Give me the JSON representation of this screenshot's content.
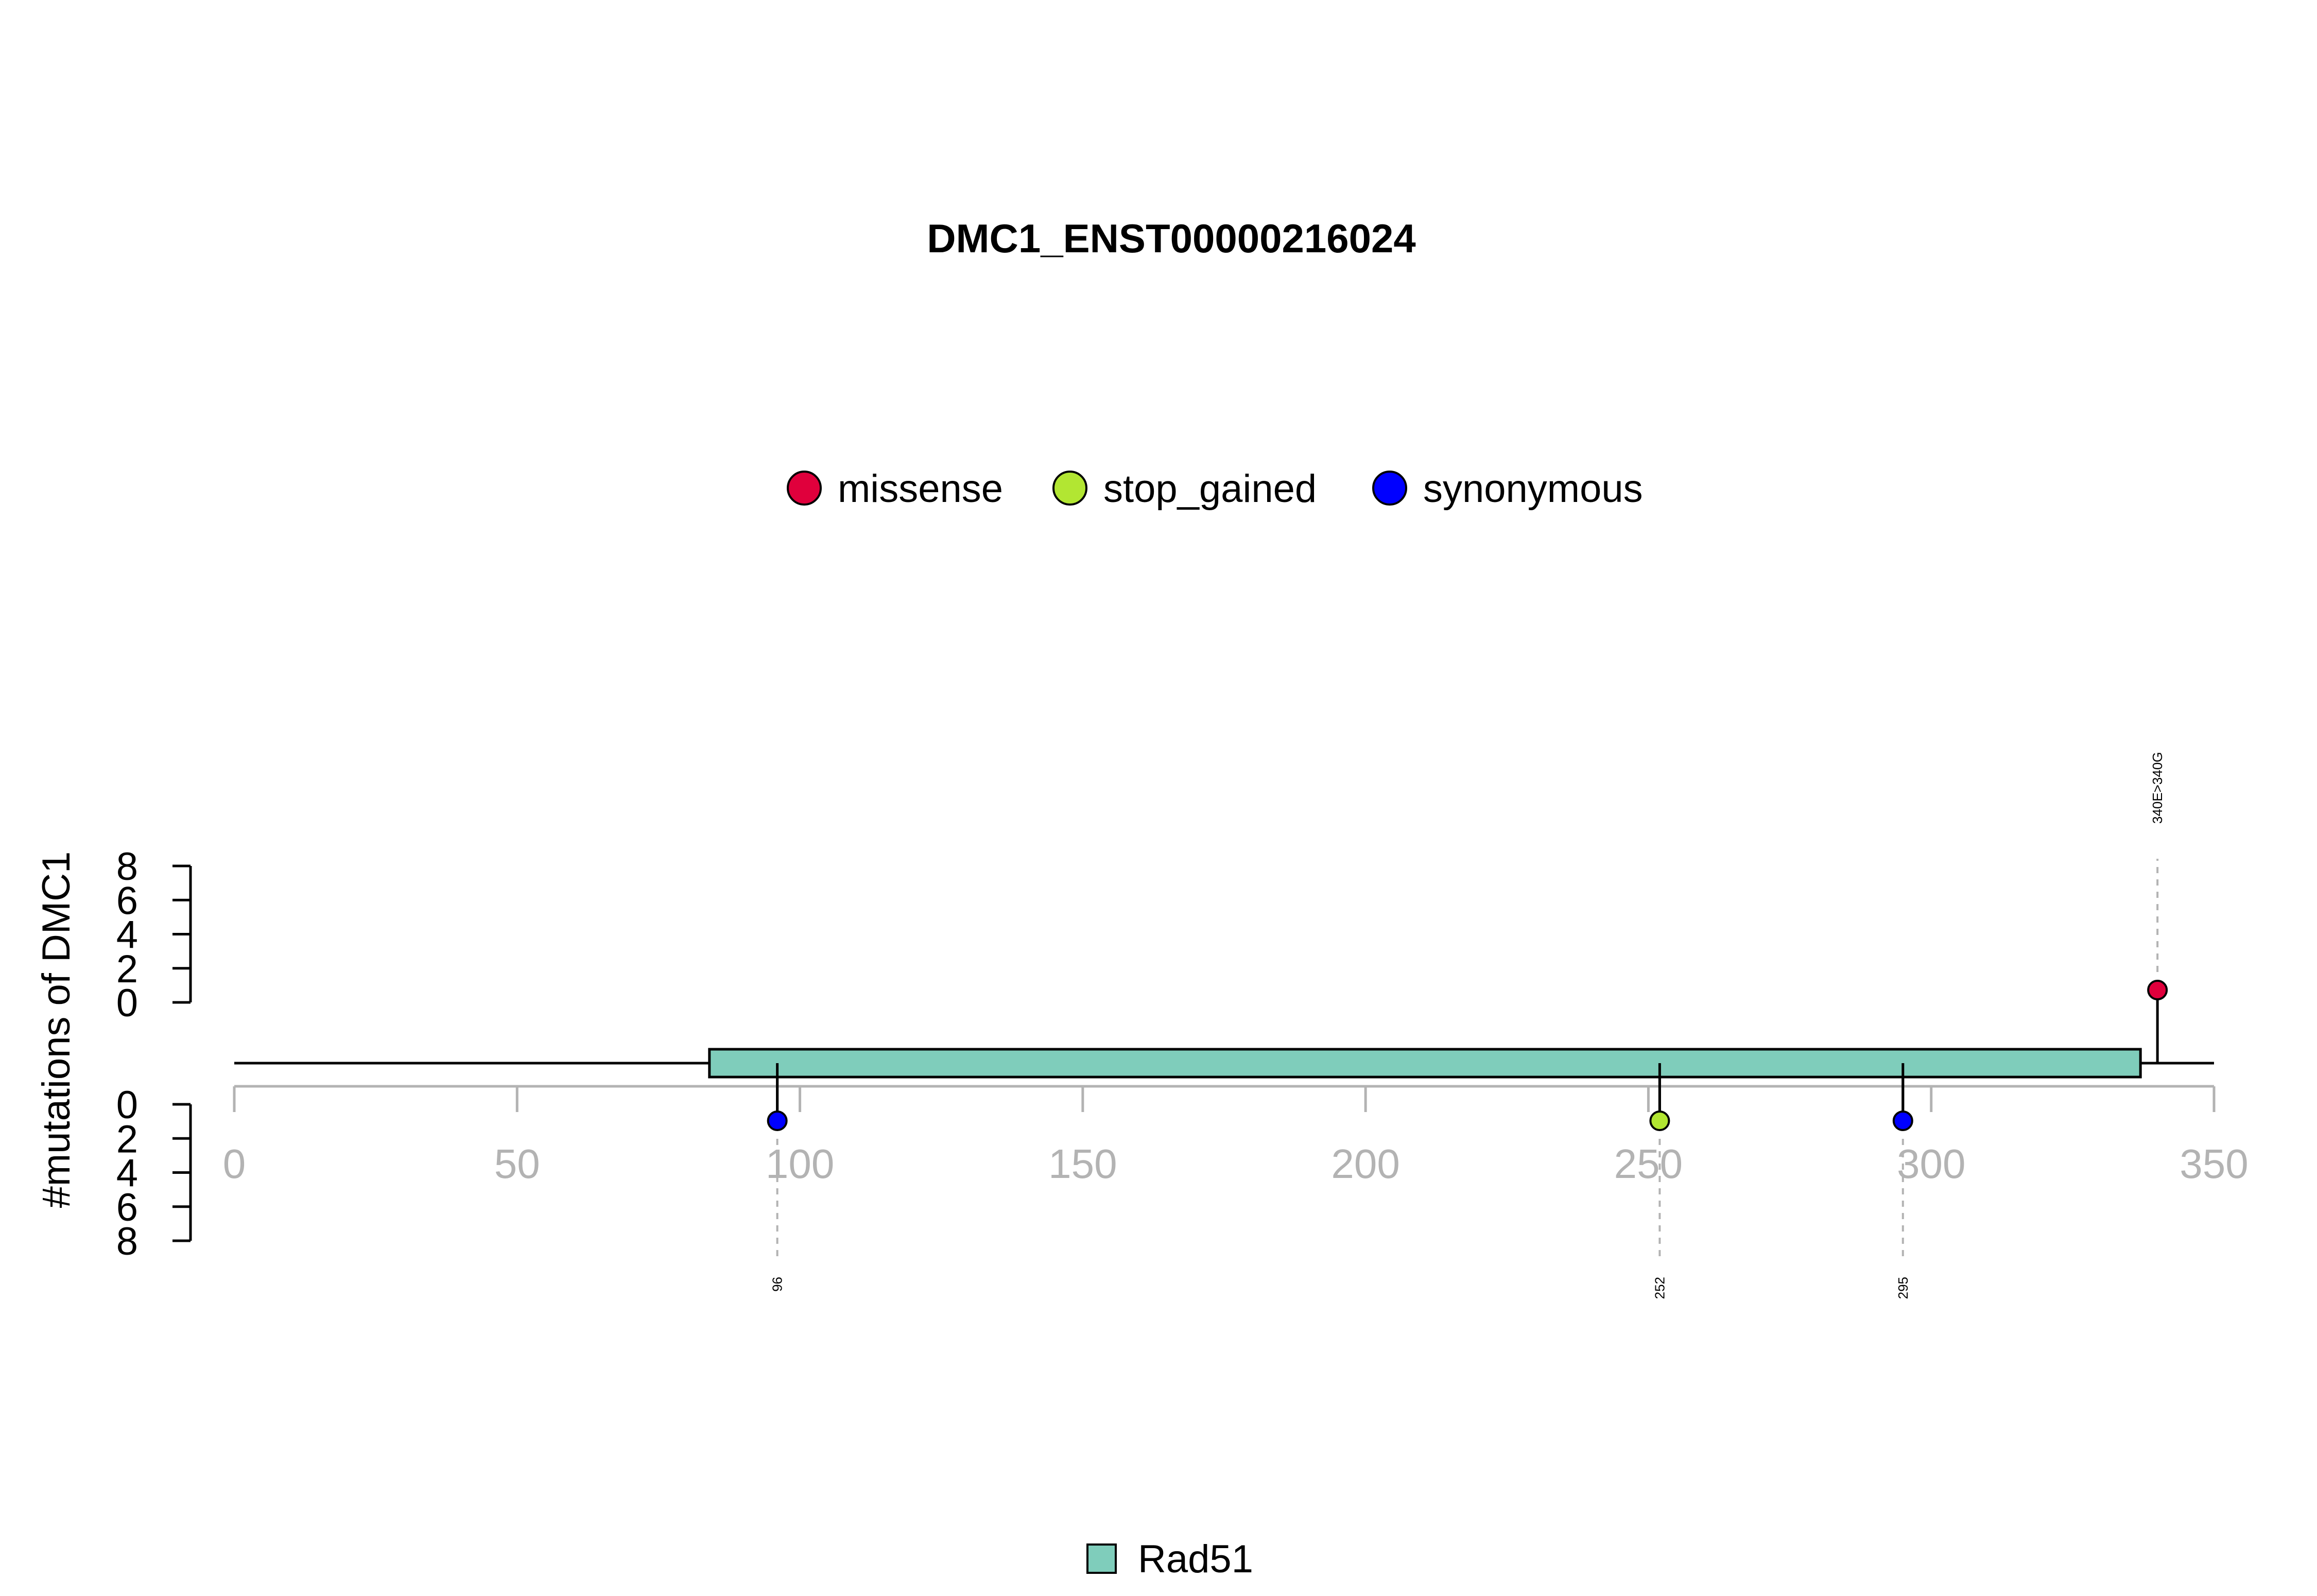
{
  "chart_data": {
    "type": "lollipop",
    "title": "DMC1_ENST00000216024",
    "ylabel": "#mutations of DMC1",
    "x_ticks": [
      0,
      50,
      100,
      150,
      200,
      250,
      300,
      350
    ],
    "xlim": [
      0,
      350
    ],
    "y_ticks_top": [
      8,
      6,
      4,
      2,
      0
    ],
    "y_ticks_bottom": [
      0,
      2,
      4,
      6,
      8
    ],
    "ylim": [
      0,
      8
    ],
    "legend_top": [
      {
        "name": "missense",
        "color": "#e0003c"
      },
      {
        "name": "stop_gained",
        "color": "#b2e632"
      },
      {
        "name": "synonymous",
        "color": "#0000ff"
      }
    ],
    "domains": [
      {
        "name": "Rad51",
        "start": 84,
        "end": 337,
        "color": "#7fcdbb"
      }
    ],
    "mutations": [
      {
        "position": 340,
        "label": "340E>340G",
        "type": "missense",
        "count": 1,
        "side": "top",
        "color": "#e0003c"
      },
      {
        "position": 96,
        "label": "96",
        "type": "synonymous",
        "count": 1,
        "side": "bottom",
        "color": "#0000ff"
      },
      {
        "position": 252,
        "label": "252",
        "type": "stop_gained",
        "count": 1,
        "side": "bottom",
        "color": "#b2e632"
      },
      {
        "position": 295,
        "label": "295",
        "type": "synonymous",
        "count": 1,
        "side": "bottom",
        "color": "#0000ff"
      }
    ],
    "legend_bottom": [
      {
        "name": "Rad51",
        "color": "#7fcdbb"
      }
    ]
  }
}
